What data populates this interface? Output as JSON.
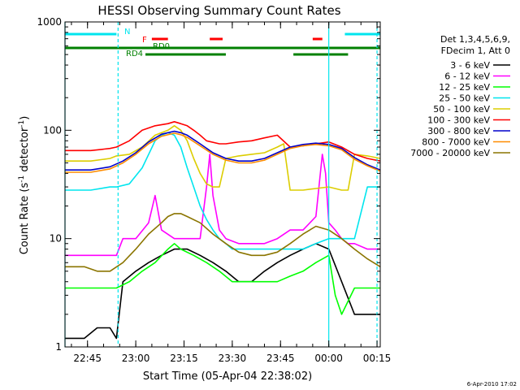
{
  "chart_data": {
    "type": "line",
    "title": "HESSI Observing Summary Count Rates",
    "xlabel": "Start Time (05-Apr-04 22:38:02)",
    "ylabel": "Count Rate (s",
    "ylabel_sup1": "-1",
    "ylabel_mid": " detector",
    "ylabel_sup2": "-1",
    "ylabel_end": ")",
    "y_scale": "log",
    "ylim": [
      1,
      1000
    ],
    "xlim_minutes": [
      0,
      98
    ],
    "x_ticks": [
      {
        "label": "22:45",
        "minute": 7
      },
      {
        "label": "23:00",
        "minute": 22
      },
      {
        "label": "23:15",
        "minute": 37
      },
      {
        "label": "23:30",
        "minute": 52
      },
      {
        "label": "23:45",
        "minute": 67
      },
      {
        "label": "00:00",
        "minute": 82
      },
      {
        "label": "00:15",
        "minute": 97
      }
    ],
    "y_ticks": [
      {
        "label": "1",
        "value": 1
      },
      {
        "label": "10",
        "value": 10
      },
      {
        "label": "100",
        "value": 100
      },
      {
        "label": "1000",
        "value": 1000
      }
    ],
    "legend_header": [
      "Det 1,3,4,5,6,9,",
      "FDecim 1, Att 0"
    ],
    "legend_position": "right",
    "timestamp": "6-Apr-2010 17:02",
    "flags": [
      {
        "label": "N",
        "color": "#00e5ee",
        "segments": [
          [
            0,
            16
          ],
          [
            87,
            98
          ]
        ]
      },
      {
        "label": "F",
        "color": "#ff0000",
        "segments": [
          [
            27,
            32
          ],
          [
            45,
            49
          ],
          [
            77,
            80
          ]
        ]
      },
      {
        "label": "RD0",
        "color": "#008000",
        "segments": [
          [
            0,
            98
          ]
        ]
      },
      {
        "label": "RD4",
        "color": "#008000",
        "segments": [
          [
            25,
            50
          ],
          [
            71,
            88
          ]
        ]
      }
    ],
    "night_lines_minutes": [
      0,
      16.5,
      82,
      97
    ],
    "series": [
      {
        "name": "3 - 6 keV",
        "color": "#000000",
        "x": [
          0,
          6,
          10,
          14,
          16,
          18,
          22,
          26,
          30,
          34,
          38,
          42,
          46,
          50,
          54,
          58,
          62,
          66,
          70,
          74,
          78,
          82,
          86,
          90,
          94,
          98
        ],
        "y": [
          1.2,
          1.2,
          1.5,
          1.5,
          1.2,
          4,
          5,
          6,
          7,
          8,
          8,
          7,
          6,
          5,
          4,
          4,
          5,
          6,
          7,
          8,
          9,
          8,
          4,
          2,
          2,
          2
        ]
      },
      {
        "name": "6 - 12 keV",
        "color": "#ff00ff",
        "x": [
          0,
          10,
          16,
          18,
          22,
          26,
          28,
          30,
          34,
          36,
          38,
          42,
          44,
          45,
          46,
          48,
          50,
          54,
          58,
          62,
          66,
          70,
          74,
          78,
          80,
          81,
          82,
          84,
          86,
          88,
          90,
          94,
          98
        ],
        "y": [
          7,
          7,
          7,
          10,
          10,
          14,
          25,
          12,
          10,
          10,
          10,
          10,
          30,
          60,
          25,
          12,
          10,
          9,
          9,
          9,
          10,
          12,
          12,
          16,
          60,
          40,
          14,
          12,
          10,
          9,
          9,
          8,
          8
        ]
      },
      {
        "name": "12 - 25 keV",
        "color": "#00ff00",
        "x": [
          0,
          6,
          10,
          14,
          16,
          20,
          24,
          28,
          32,
          34,
          36,
          40,
          44,
          48,
          52,
          56,
          60,
          64,
          66,
          70,
          74,
          78,
          82,
          84,
          86,
          90,
          92,
          94,
          98
        ],
        "y": [
          3.5,
          3.5,
          3.5,
          3.5,
          3.5,
          4,
          5,
          6,
          8,
          9,
          8,
          7,
          6,
          5,
          4,
          4,
          4,
          4,
          4,
          4.5,
          5,
          6,
          7,
          3,
          2,
          3.5,
          3.5,
          3.5,
          3.5
        ]
      },
      {
        "name": "25 - 50 keV",
        "color": "#00e5ee",
        "x": [
          0,
          8,
          14,
          16,
          20,
          24,
          28,
          30,
          32,
          34,
          36,
          38,
          40,
          42,
          44,
          46,
          48,
          50,
          52,
          54,
          58,
          62,
          66,
          70,
          74,
          78,
          82,
          86,
          90,
          94,
          98
        ],
        "y": [
          28,
          28,
          30,
          30,
          32,
          45,
          80,
          90,
          95,
          90,
          70,
          45,
          30,
          20,
          15,
          12,
          10,
          9,
          8,
          8,
          8,
          8,
          8,
          8,
          8,
          9,
          10,
          10,
          10,
          30,
          30
        ]
      },
      {
        "name": "50 - 100 keV",
        "color": "#dccd00",
        "x": [
          0,
          8,
          14,
          16,
          20,
          24,
          28,
          32,
          34,
          36,
          38,
          40,
          42,
          44,
          46,
          48,
          50,
          54,
          58,
          62,
          66,
          68,
          70,
          74,
          78,
          82,
          86,
          88,
          90,
          94,
          98
        ],
        "y": [
          52,
          52,
          55,
          58,
          60,
          70,
          90,
          100,
          110,
          100,
          80,
          55,
          40,
          32,
          30,
          30,
          55,
          58,
          60,
          62,
          70,
          75,
          28,
          28,
          29,
          30,
          28,
          28,
          60,
          58,
          55
        ]
      },
      {
        "name": "100 - 300 keV",
        "color": "#ff0000",
        "x": [
          0,
          8,
          14,
          16,
          20,
          24,
          28,
          32,
          34,
          36,
          38,
          40,
          42,
          44,
          48,
          50,
          54,
          58,
          62,
          66,
          70,
          74,
          78,
          82,
          86,
          90,
          94,
          98
        ],
        "y": [
          65,
          65,
          68,
          70,
          80,
          100,
          110,
          115,
          120,
          115,
          110,
          100,
          90,
          80,
          75,
          75,
          78,
          80,
          85,
          90,
          70,
          72,
          75,
          78,
          70,
          60,
          55,
          52
        ]
      },
      {
        "name": "300 - 800 keV",
        "color": "#0000cc",
        "x": [
          0,
          8,
          14,
          18,
          22,
          26,
          30,
          34,
          36,
          38,
          42,
          46,
          50,
          54,
          58,
          62,
          66,
          70,
          74,
          78,
          82,
          86,
          90,
          94,
          98
        ],
        "y": [
          43,
          43,
          46,
          52,
          62,
          78,
          92,
          98,
          95,
          90,
          75,
          62,
          55,
          52,
          52,
          55,
          62,
          70,
          74,
          76,
          74,
          68,
          56,
          48,
          43
        ]
      },
      {
        "name": "800 - 7000 keV",
        "color": "#ff8c00",
        "x": [
          0,
          8,
          14,
          18,
          22,
          26,
          30,
          34,
          36,
          38,
          42,
          46,
          50,
          54,
          58,
          62,
          66,
          70,
          74,
          78,
          82,
          86,
          90,
          94,
          98
        ],
        "y": [
          41,
          41,
          44,
          50,
          60,
          75,
          88,
          94,
          91,
          86,
          72,
          60,
          53,
          50,
          50,
          53,
          60,
          68,
          72,
          74,
          72,
          66,
          54,
          47,
          42
        ]
      },
      {
        "name": "7000 - 20000 keV",
        "color": "#8b7500",
        "x": [
          0,
          6,
          10,
          14,
          18,
          22,
          26,
          30,
          32,
          34,
          36,
          38,
          42,
          46,
          50,
          54,
          58,
          62,
          66,
          70,
          74,
          78,
          82,
          86,
          90,
          94,
          98
        ],
        "y": [
          5.5,
          5.5,
          5,
          5,
          6,
          8,
          11,
          14,
          16,
          17,
          17,
          16,
          14,
          11,
          9,
          7.5,
          7,
          7,
          7.5,
          9,
          11,
          13,
          12,
          10,
          8,
          6.5,
          5.5
        ]
      }
    ]
  }
}
